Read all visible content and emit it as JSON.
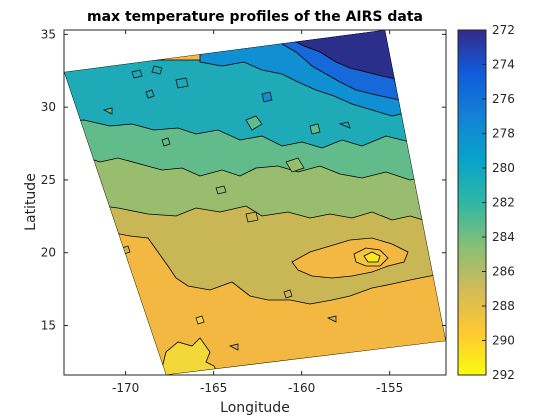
{
  "chart_data": {
    "type": "heatmap",
    "subtype": "filled-contour",
    "title": "max temperature profiles of the AIRS data",
    "xlabel": "Longitude",
    "ylabel": "Latitude",
    "xlim": [
      -173.5,
      -151.8
    ],
    "ylim": [
      11.6,
      35.3
    ],
    "x_ticks": [
      -170,
      -165,
      -160,
      -155
    ],
    "x_tick_labels": [
      "-170",
      "-165",
      "-160",
      "-155"
    ],
    "y_ticks": [
      15,
      20,
      25,
      30,
      35
    ],
    "y_tick_labels": [
      "15",
      "20",
      "25",
      "30",
      "35"
    ],
    "grid": false,
    "colorbar": {
      "colormap": "parula",
      "direction": "reversed",
      "clim": [
        272,
        292
      ],
      "ticks": [
        272,
        274,
        276,
        278,
        280,
        282,
        284,
        286,
        288,
        290,
        292
      ],
      "tick_labels": [
        "272",
        "274",
        "276",
        "278",
        "280",
        "282",
        "284",
        "286",
        "288",
        "290",
        "292"
      ],
      "colors": [
        "#352a87",
        "#0f5cdd",
        "#1481d6",
        "#06a4ca",
        "#2eb7a4",
        "#87bf77",
        "#d1bb59",
        "#fec832",
        "#f9fb0e"
      ]
    },
    "data_region": {
      "corners": [
        [
          -173.5,
          32.5
        ],
        [
          -153.5,
          35.3
        ],
        [
          -151.8,
          13.2
        ],
        [
          -166.5,
          11.6
        ]
      ]
    },
    "contour_bands": [
      {
        "range": [
          272,
          276
        ],
        "region": "northeast corner, ~lon -160 to -153.5, lat 31 to 35.3"
      },
      {
        "range": [
          276,
          278
        ],
        "region": "northern strip, lat ~30 to 34"
      },
      {
        "range": [
          278,
          280
        ],
        "region": "band across lat ~27 to 31"
      },
      {
        "range": [
          280,
          282
        ],
        "region": "band across lat ~25 to 28"
      },
      {
        "range": [
          282,
          284
        ],
        "region": "band across lat ~22 to 26"
      },
      {
        "range": [
          284,
          286
        ],
        "region": "band across lat ~18 to 23, with a warm cell near lon -155, lat 20"
      },
      {
        "range": [
          286,
          288
        ],
        "region": "broad southern region, lat ~13 to 20"
      },
      {
        "range": [
          288,
          292
        ],
        "region": "southwest corner, lon ~ -168 to -163, lat 11.6 to 14"
      }
    ]
  }
}
